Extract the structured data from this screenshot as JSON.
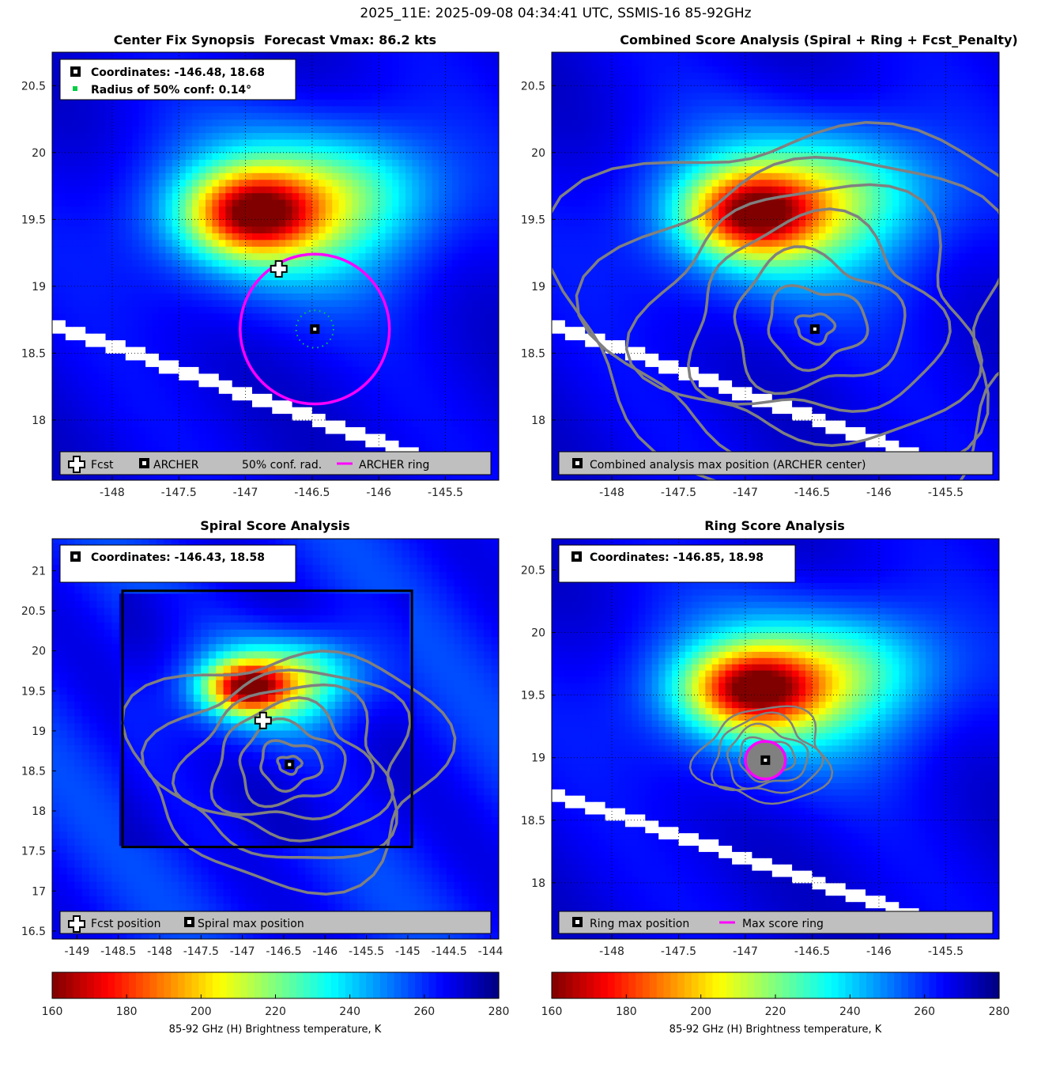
{
  "suptitle": "2025_11E: 2025-09-08 04:34:41 UTC, SSMIS-16 85-92GHz",
  "colors": {
    "ring": "#ff00ff",
    "contour": "#808080",
    "legend_bg": "#bfbfbf",
    "ci_dots": "#00cc44",
    "missing": "#ffffff"
  },
  "colormap": "jet (reversed)",
  "chart_data": [
    {
      "type": "heatmap",
      "title_left": "Center Fix Synopsis",
      "title_right": "Forecast Vmax: 86.2 kts",
      "xlim": [
        -148.45,
        -145.1
      ],
      "ylim": [
        17.55,
        20.75
      ],
      "xticks": [
        -148,
        -147.5,
        -147,
        -146.5,
        -146,
        -145.5
      ],
      "xtick_labels": [
        "-148",
        "-147.5",
        "-147",
        "-146.5",
        "-146",
        "-145.5"
      ],
      "yticks": [
        18,
        18.5,
        19,
        19.5,
        20,
        20.5
      ],
      "ytick_labels": [
        "18",
        "18.5",
        "19",
        "19.5",
        "20",
        "20.5"
      ],
      "grid": true,
      "info_box": [
        "Coordinates: -146.48, 18.68",
        "Radius of 50% conf: 0.14°"
      ],
      "legend": [
        "Fcst",
        "ARCHER",
        "50% conf. rad.",
        "ARCHER ring"
      ],
      "legend_location": "bottom",
      "fcst": [
        -146.75,
        19.13
      ],
      "center": [
        -146.48,
        18.68
      ],
      "conf_radius_deg": 0.14,
      "ring_radius_deg": 0.56,
      "contours": false
    },
    {
      "type": "heatmap",
      "title": "Combined Score Analysis (Spiral + Ring + Fcst_Penalty)",
      "xlim": [
        -148.45,
        -145.1
      ],
      "ylim": [
        17.55,
        20.75
      ],
      "xticks": [
        -148,
        -147.5,
        -147,
        -146.5,
        -146,
        -145.5
      ],
      "xtick_labels": [
        "-148",
        "-147.5",
        "-147",
        "-146.5",
        "-146",
        "-145.5"
      ],
      "yticks": [
        18,
        18.5,
        19,
        19.5,
        20,
        20.5
      ],
      "ytick_labels": [
        "18",
        "18.5",
        "19",
        "19.5",
        "20",
        "20.5"
      ],
      "grid": true,
      "legend": [
        "Combined analysis max position (ARCHER center)"
      ],
      "legend_location": "bottom",
      "center": [
        -146.48,
        18.68
      ],
      "contours": true
    },
    {
      "type": "heatmap",
      "title": "Spiral Score Analysis",
      "xlim": [
        -149.3,
        -143.9
      ],
      "ylim": [
        16.4,
        21.4
      ],
      "xticks": [
        -149,
        -148.5,
        -148,
        -147.5,
        -147,
        -146.5,
        -146,
        -145.5,
        -145,
        -144.5,
        -144
      ],
      "xtick_labels": [
        "-149",
        "-148.5",
        "-148",
        "-147.5",
        "-147",
        "-146.5",
        "-146",
        "-145.5",
        "-145",
        "-144.5",
        "-144"
      ],
      "yticks": [
        16.5,
        17,
        17.5,
        18,
        18.5,
        19,
        19.5,
        20,
        20.5,
        21
      ],
      "ytick_labels": [
        "16.5",
        "17",
        "17.5",
        "18",
        "18.5",
        "19",
        "19.5",
        "20",
        "20.5",
        "21"
      ],
      "grid": false,
      "info_box": [
        "Coordinates: -146.43, 18.58"
      ],
      "legend": [
        "Fcst position",
        "Spiral max position"
      ],
      "legend_location": "bottom",
      "fcst": [
        -146.75,
        19.13
      ],
      "center": [
        -146.43,
        18.58
      ],
      "search_box": [
        -148.45,
        17.55,
        -144.95,
        20.75
      ],
      "contours": true
    },
    {
      "type": "heatmap",
      "title": "Ring Score Analysis",
      "xlim": [
        -148.45,
        -145.1
      ],
      "ylim": [
        17.55,
        20.75
      ],
      "xticks": [
        -148,
        -147.5,
        -147,
        -146.5,
        -146,
        -145.5
      ],
      "xtick_labels": [
        "-148",
        "-147.5",
        "-147",
        "-146.5",
        "-146",
        "-145.5"
      ],
      "yticks": [
        18,
        18.5,
        19,
        19.5,
        20,
        20.5
      ],
      "ytick_labels": [
        "18",
        "18.5",
        "19",
        "19.5",
        "20",
        "20.5"
      ],
      "grid": true,
      "info_box": [
        "Coordinates: -146.85, 18.98"
      ],
      "legend": [
        "Ring max position",
        "Max score ring"
      ],
      "legend_location": "bottom",
      "center": [
        -146.85,
        18.98
      ],
      "ring_radius_deg": 0.15,
      "contours": true
    }
  ],
  "colorbars": [
    {
      "label": "85-92 GHz (H) Brightness temperature, K",
      "range": [
        160,
        280
      ],
      "ticks": [
        160,
        180,
        200,
        220,
        240,
        260,
        280
      ]
    },
    {
      "label": "85-92 GHz (H) Brightness temperature, K",
      "range": [
        160,
        280
      ],
      "ticks": [
        160,
        180,
        200,
        220,
        240,
        260,
        280
      ]
    }
  ]
}
